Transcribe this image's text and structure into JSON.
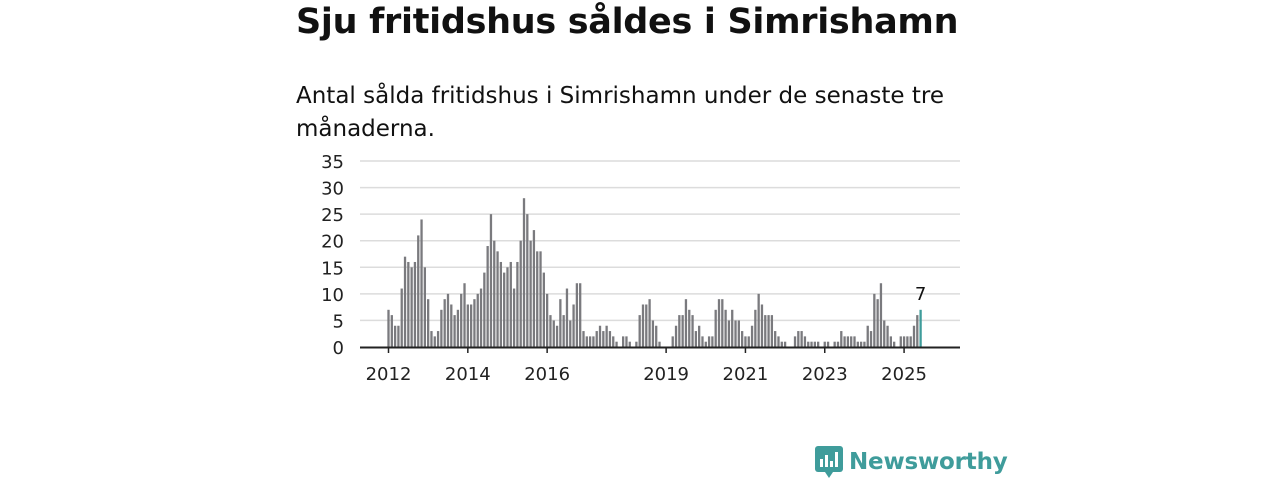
{
  "title": "Sju fritidshus såldes i Simrishamn",
  "subtitle": "Antal sålda fritidshus i Simrishamn under de senaste tre månaderna.",
  "brand": {
    "name": "Newsworthy",
    "color": "#3f9c9b"
  },
  "chart_data": {
    "type": "bar",
    "title": "Sju fritidshus såldes i Simrishamn",
    "subtitle": "Antal sålda fritidshus i Simrishamn under de senaste tre månaderna.",
    "xlabel": "",
    "ylabel": "",
    "ylim": [
      0,
      35
    ],
    "yticks": [
      0,
      5,
      10,
      15,
      20,
      25,
      30,
      35
    ],
    "grid": true,
    "x_tick_labels": [
      {
        "label": "2012",
        "index": 0
      },
      {
        "label": "2014",
        "index": 24
      },
      {
        "label": "2016",
        "index": 48
      },
      {
        "label": "2019",
        "index": 84
      },
      {
        "label": "2021",
        "index": 108
      },
      {
        "label": "2023",
        "index": 132
      },
      {
        "label": "2025",
        "index": 156
      }
    ],
    "bar_color": "#7a7a7e",
    "highlight_color": "#3f9c9b",
    "highlight_label": "7",
    "series": [
      {
        "name": "Sålda fritidshus",
        "values": [
          7,
          6,
          4,
          4,
          11,
          17,
          16,
          15,
          16,
          21,
          24,
          15,
          9,
          3,
          2,
          3,
          7,
          9,
          10,
          8,
          6,
          7,
          10,
          12,
          8,
          8,
          9,
          10,
          11,
          14,
          19,
          25,
          20,
          18,
          16,
          14,
          15,
          16,
          11,
          16,
          20,
          28,
          25,
          20,
          22,
          18,
          18,
          14,
          10,
          6,
          5,
          4,
          9,
          6,
          11,
          5,
          8,
          12,
          12,
          3,
          2,
          2,
          2,
          3,
          4,
          3,
          4,
          3,
          2,
          1,
          0,
          2,
          2,
          1,
          0,
          1,
          6,
          8,
          8,
          9,
          5,
          4,
          1,
          0,
          0,
          0,
          2,
          4,
          6,
          6,
          9,
          7,
          6,
          3,
          4,
          2,
          1,
          2,
          2,
          7,
          9,
          9,
          7,
          5,
          7,
          5,
          5,
          3,
          2,
          2,
          4,
          7,
          10,
          8,
          6,
          6,
          6,
          3,
          2,
          1,
          1,
          0,
          0,
          2,
          3,
          3,
          2,
          1,
          1,
          1,
          1,
          0,
          1,
          1,
          0,
          1,
          1,
          3,
          2,
          2,
          2,
          2,
          1,
          1,
          1,
          4,
          3,
          10,
          9,
          12,
          5,
          4,
          2,
          1,
          0,
          2,
          2,
          2,
          2,
          4,
          6,
          7
        ]
      }
    ]
  }
}
